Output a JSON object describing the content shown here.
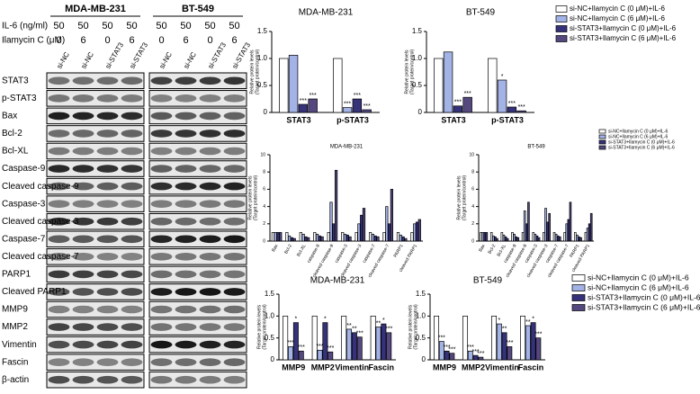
{
  "blot": {
    "dose_labels": {
      "il6": "IL-6 (ng/ml)",
      "ilamycin": "Ilamycin C (μM)"
    },
    "groups": [
      {
        "name": "MDA-MB-231",
        "il6": [
          50,
          50,
          50,
          50
        ],
        "ilamycin": [
          0,
          6,
          0,
          6
        ],
        "lanes": [
          "si-NC",
          "si-NC",
          "si-STAT3",
          "si-STAT3"
        ]
      },
      {
        "name": "BT-549",
        "il6": [
          50,
          50,
          50,
          50
        ],
        "ilamycin": [
          0,
          6,
          0,
          6
        ],
        "lanes": [
          "si-NC",
          "si-NC",
          "si-STAT3",
          "si-STAT3"
        ]
      }
    ],
    "row_labels": [
      "STAT3",
      "p-STAT3",
      "Bax",
      "Bcl-2",
      "Bcl-XL",
      "Caspase-9",
      "Cleaved caspase-9",
      "Caspase-3",
      "Cleaved caspase-3",
      "Caspase-7",
      "Cleaved caspase-7",
      "PARP1",
      "Cleaved PARP1",
      "MMP9",
      "MMP2",
      "Vimentin",
      "Fascin",
      "β-actin"
    ]
  },
  "chart_data": [
    {
      "type": "bar",
      "title": "MDA-MB-231",
      "ylabel": [
        "Relative protein levels",
        "(Target protein/control)"
      ],
      "categories": [
        "STAT3",
        "p-STAT3"
      ],
      "ylim": [
        0,
        1.5
      ],
      "yticks": [
        0,
        0.5,
        {
          "value": 1,
          "label": "1.0"
        },
        1.5
      ],
      "series": [
        {
          "name": "si-NC+Ilamycin C (0 μM)+IL-6",
          "color": "#ffffff",
          "values": [
            1.0,
            1.0
          ]
        },
        {
          "name": "si-NC+Ilamycin C (6 μM)+IL-6",
          "color": "#a3b3e6",
          "values": [
            1.06,
            0.09
          ],
          "sig": [
            null,
            "***"
          ]
        },
        {
          "name": "si-STAT3+Ilamycin C (0 μM)+IL-6",
          "color": "#36327a",
          "values": [
            0.15,
            0.25
          ],
          "sig": [
            "***",
            "***"
          ]
        },
        {
          "name": "si-STAT3+Ilamycin C (6 μM)+IL-6",
          "color": "#54487f",
          "values": [
            0.25,
            0.05
          ],
          "sig": [
            "***",
            "***"
          ]
        }
      ]
    },
    {
      "type": "bar",
      "title": "BT-549",
      "ylabel": [
        "Relative protein levels",
        "(Target protein/control)"
      ],
      "categories": [
        "STAT3",
        "p-STAT3"
      ],
      "ylim": [
        0,
        1.5
      ],
      "yticks": [
        0,
        0.5,
        {
          "value": 1,
          "label": "1.0"
        },
        1.5
      ],
      "series": [
        {
          "name": "si-NC+Ilamycin C (0 μM)+IL-6",
          "color": "#ffffff",
          "values": [
            1.0,
            1.0
          ]
        },
        {
          "name": "si-NC+Ilamycin C (6 μM)+IL-6",
          "color": "#a3b3e6",
          "values": [
            1.12,
            0.6
          ],
          "sig": [
            null,
            "*"
          ]
        },
        {
          "name": "si-STAT3+Ilamycin C (0 μM)+IL-6",
          "color": "#36327a",
          "values": [
            0.12,
            0.1
          ],
          "sig": [
            "***",
            "***"
          ]
        },
        {
          "name": "si-STAT3+Ilamycin C (6 μM)+IL-6",
          "color": "#54487f",
          "values": [
            0.28,
            0.03
          ],
          "sig": [
            "***",
            "***"
          ]
        }
      ]
    },
    {
      "type": "bar",
      "title": "MDA-MB-231",
      "ylabel": [
        "Relative protein levels",
        "(Target protein/control)"
      ],
      "categories": [
        "Bax",
        "Bcl-2",
        "Bcl-XL",
        "caspase-9",
        "cleaved caspase-9",
        "caspase-3",
        "cleaved caspase-3",
        "caspase-7",
        "cleaved caspase-7",
        "PARP1",
        "cleaved PARP1"
      ],
      "ylim": [
        0,
        10
      ],
      "yticks": [
        0,
        2,
        4,
        6,
        8,
        10
      ],
      "series": [
        {
          "name": "si-NC+Ilamycin C (0 μM)+IL-6",
          "color": "#ffffff",
          "values": [
            1,
            1,
            1,
            1,
            1,
            1,
            1,
            1,
            1,
            1,
            1
          ]
        },
        {
          "name": "si-NC+Ilamycin C (6 μM)+IL-6",
          "color": "#a3b3e6",
          "values": [
            1,
            0.6,
            0.8,
            0.8,
            4.5,
            0.8,
            2,
            0.8,
            4,
            0.7,
            2
          ]
        },
        {
          "name": "si-STAT3+Ilamycin C (0 μM)+IL-6",
          "color": "#36327a",
          "values": [
            1,
            0.4,
            0.5,
            0.6,
            2,
            0.7,
            3,
            0.6,
            2,
            0.5,
            2.2
          ]
        },
        {
          "name": "si-STAT3+Ilamycin C (6 μM)+IL-6",
          "color": "#54487f",
          "values": [
            1,
            0.3,
            0.4,
            0.5,
            8.2,
            0.5,
            3.8,
            0.5,
            6,
            0.3,
            2.5
          ]
        }
      ]
    },
    {
      "type": "bar",
      "title": "BT-549",
      "ylabel": [
        "Relative protein levels",
        "(Target protein/control)"
      ],
      "categories": [
        "Bax",
        "Bcl-2",
        "Bcl-XL",
        "caspase-9",
        "cleaved caspase-9",
        "caspase-3",
        "cleaved caspase-3",
        "caspase-7",
        "cleaved caspase-7",
        "PARP1",
        "cleaved PARP1"
      ],
      "ylim": [
        0,
        10
      ],
      "yticks": [
        0,
        2,
        4,
        6,
        8,
        10
      ],
      "series": [
        {
          "name": "si-NC+Ilamycin C (0 μM)+IL-6",
          "color": "#ffffff",
          "values": [
            1,
            1,
            1,
            1,
            1,
            1,
            1,
            1,
            1,
            1,
            1
          ]
        },
        {
          "name": "si-NC+Ilamycin C (6 μM)+IL-6",
          "color": "#a3b3e6",
          "values": [
            1,
            0.6,
            0.7,
            0.8,
            3.5,
            0.8,
            3.8,
            0.8,
            2,
            0.7,
            1.5
          ]
        },
        {
          "name": "si-STAT3+Ilamycin C (0 μM)+IL-6",
          "color": "#36327a",
          "values": [
            1,
            0.5,
            0.5,
            0.5,
            2,
            0.6,
            2.2,
            0.6,
            2.5,
            0.5,
            2
          ]
        },
        {
          "name": "si-STAT3+Ilamycin C (6 μM)+IL-6",
          "color": "#54487f",
          "values": [
            1,
            0.3,
            0.3,
            0.4,
            4.5,
            0.4,
            3.2,
            0.5,
            4.5,
            0.4,
            3.2
          ]
        }
      ]
    },
    {
      "type": "bar",
      "title": "MDA-MB-231",
      "ylabel": [
        "Relative protein levels",
        "(Target protein/control)"
      ],
      "categories": [
        "MMP9",
        "MMP2",
        "Vimentin",
        "Fascin"
      ],
      "ylim": [
        0,
        1.5
      ],
      "yticks": [
        0,
        0.5,
        {
          "value": 1,
          "label": "1.0"
        },
        1.5
      ],
      "series": [
        {
          "name": "si-NC+Ilamycin C (0 μM)+IL-6",
          "color": "#ffffff",
          "values": [
            1,
            1,
            1,
            1
          ]
        },
        {
          "name": "si-NC+Ilamycin C (6 μM)+IL-6",
          "color": "#a3b3e6",
          "values": [
            0.3,
            0.22,
            0.7,
            0.75
          ],
          "sig": [
            "***",
            "***",
            "**",
            "**"
          ]
        },
        {
          "name": "si-STAT3+Ilamycin C (0 μM)+IL-6",
          "color": "#36327a",
          "values": [
            0.85,
            0.85,
            0.62,
            0.82
          ],
          "sig": [
            "*",
            "*",
            "**",
            "*"
          ]
        },
        {
          "name": "si-STAT3+Ilamycin C (6 μM)+IL-6",
          "color": "#54487f",
          "values": [
            0.2,
            0.18,
            0.52,
            0.62
          ],
          "sig": [
            "***",
            "***",
            "***",
            "***"
          ]
        }
      ]
    },
    {
      "type": "bar",
      "title": "BT-549",
      "ylabel": [
        "Relative protein levels",
        "(Target protein/control)"
      ],
      "categories": [
        "MMP9",
        "MMP2",
        "Vimentin",
        "Fascin"
      ],
      "ylim": [
        0,
        1.5
      ],
      "yticks": [
        0,
        0.5,
        {
          "value": 1,
          "label": "1.0"
        },
        1.5
      ],
      "series": [
        {
          "name": "si-NC+Ilamycin C (0 μM)+IL-6",
          "color": "#ffffff",
          "values": [
            1,
            1,
            1,
            1
          ]
        },
        {
          "name": "si-NC+Ilamycin C (6 μM)+IL-6",
          "color": "#a3b3e6",
          "values": [
            0.42,
            0.2,
            0.82,
            0.78
          ],
          "sig": [
            "***",
            "***",
            "*",
            "**"
          ]
        },
        {
          "name": "si-STAT3+Ilamycin C (0 μM)+IL-6",
          "color": "#36327a",
          "values": [
            0.2,
            0.1,
            0.62,
            0.85
          ],
          "sig": [
            "***",
            "***",
            "**",
            "*"
          ]
        },
        {
          "name": "si-STAT3+Ilamycin C (6 μM)+IL-6",
          "color": "#54487f",
          "values": [
            0.15,
            0.06,
            0.3,
            0.5
          ],
          "sig": [
            "***",
            "***",
            "***",
            "***"
          ]
        }
      ]
    }
  ]
}
